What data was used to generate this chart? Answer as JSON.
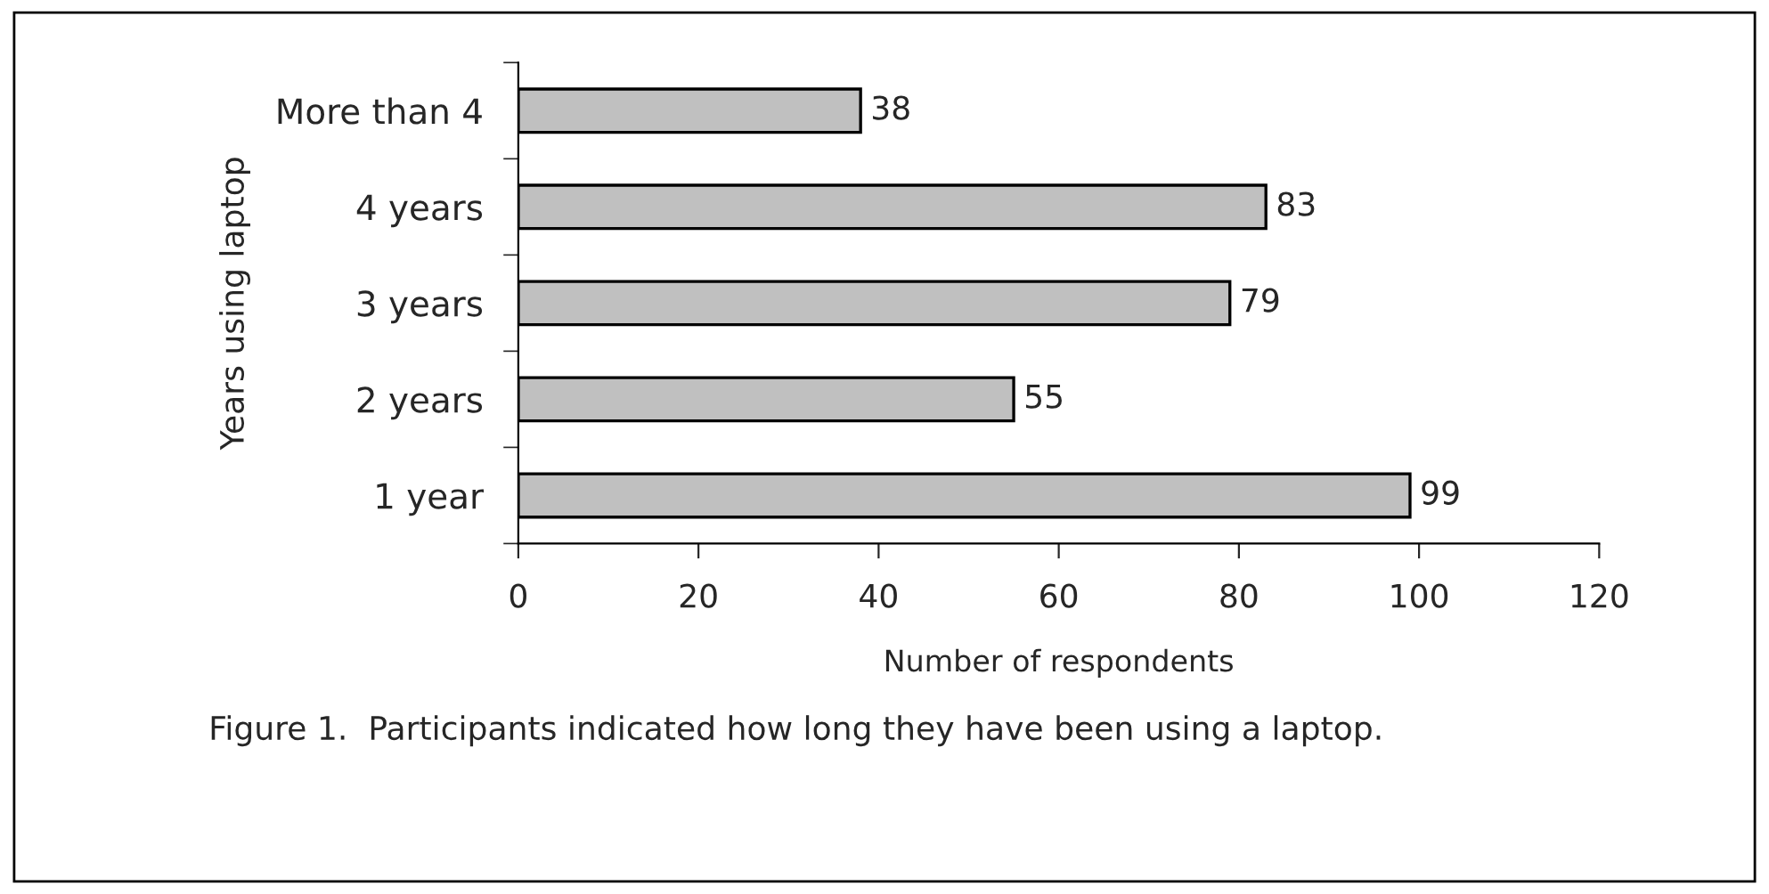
{
  "chart_data": {
    "type": "bar",
    "orientation": "horizontal",
    "categories": [
      "More than 4",
      "4 years",
      "3 years",
      "2 years",
      "1 year"
    ],
    "values": [
      38,
      83,
      79,
      55,
      99
    ],
    "color": "#c0c0c0",
    "xlim": [
      0,
      120
    ],
    "xticks": [
      0,
      20,
      40,
      60,
      80,
      100,
      120
    ],
    "xlabel": "Number of respondents",
    "ylabel": "Years using laptop",
    "data_labels": true,
    "grid": false,
    "legend": false,
    "annotations": [
      "Figure 1.  Participants indicated how long they have been using a laptop."
    ]
  }
}
